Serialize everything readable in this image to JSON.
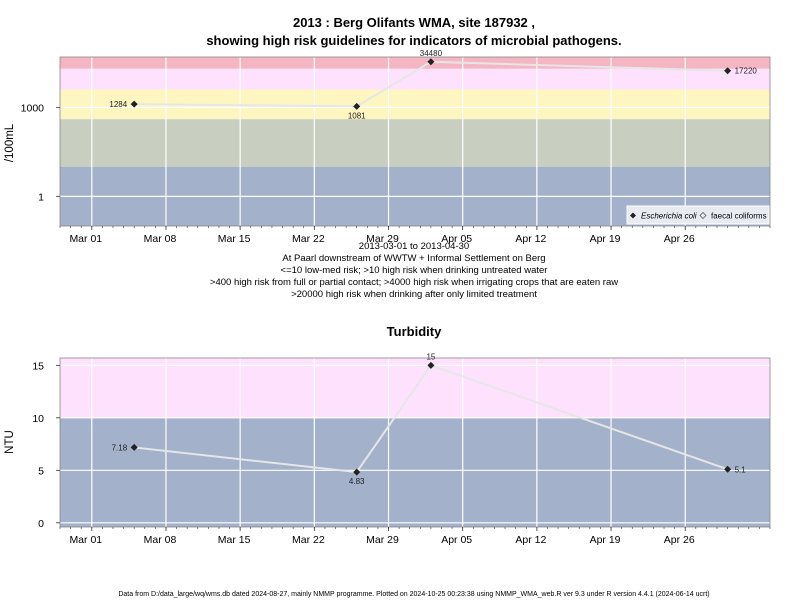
{
  "colors": {
    "band_red": "#f4b6c2",
    "band_pink": "#fde1fd",
    "band_yellow": "#fdf6c0",
    "band_green": "#c8cfc0",
    "band_blue": "#a3b1cb",
    "grid": "#ffffff",
    "line": "#e6e6e6",
    "marker": "#222222",
    "frame": "#888888"
  },
  "chart_data": [
    {
      "type": "line",
      "title_line1": "2013 : Berg Olifants WMA, site 187932 ,",
      "title_line2": "showing high risk guidelines for indicators of microbial pathogens.",
      "ylabel": "/100mL",
      "y_scale": "log10",
      "ylim": [
        0.1,
        50000
      ],
      "y_ticks": [
        {
          "value": 1,
          "label": "1"
        },
        {
          "value": 1000,
          "label": "1000"
        }
      ],
      "x_ticks": [
        "Mar 01",
        "Mar 08",
        "Mar 15",
        "Mar 22",
        "Mar 29",
        "Apr 05",
        "Apr 12",
        "Apr 19",
        "Apr 26"
      ],
      "x_tick_dates": [
        "2013-03-01",
        "2013-03-08",
        "2013-03-15",
        "2013-03-22",
        "2013-03-29",
        "2013-04-05",
        "2013-04-12",
        "2013-04-19",
        "2013-04-26"
      ],
      "xlim": [
        "2013-02-26",
        "2013-05-04"
      ],
      "bands": [
        {
          "from": 20000,
          "to": 50000,
          "color": "band_red"
        },
        {
          "from": 4000,
          "to": 20000,
          "color": "band_pink"
        },
        {
          "from": 400,
          "to": 4000,
          "color": "band_yellow"
        },
        {
          "from": 10,
          "to": 400,
          "color": "band_green"
        },
        {
          "from": 0.1,
          "to": 10,
          "color": "band_blue"
        }
      ],
      "series": [
        {
          "name": "Escherichia coli",
          "x": [
            "2013-03-05",
            "2013-03-26",
            "2013-04-02",
            "2013-04-30"
          ],
          "values": [
            1284,
            1081,
            34480,
            17220
          ],
          "labels": [
            "1284",
            "1081",
            "34480",
            "17220"
          ],
          "label_pos": [
            "left",
            "below",
            "above",
            "right"
          ]
        }
      ],
      "legend": {
        "position": "bottom-right",
        "entries": [
          "Escherichia coli",
          "faecal coliforms"
        ]
      },
      "subtitle_lines": [
        "2013-03-01 to 2013-04-30",
        "At Paarl downstream of WWTW + Informal Settlement on Berg",
        "<=10 low-med risk; >10 high risk when drinking untreated water",
        ">400 high risk from full or partial contact; >4000 high risk when irrigating crops that are eaten raw",
        ">20000 high risk when drinking after only limited treatment"
      ]
    },
    {
      "type": "line",
      "title": "Turbidity",
      "ylabel": "NTU",
      "ylim": [
        -0.4,
        15.7
      ],
      "y_ticks": [
        {
          "value": 0,
          "label": "0"
        },
        {
          "value": 5,
          "label": "5"
        },
        {
          "value": 10,
          "label": "10"
        },
        {
          "value": 15,
          "label": "15"
        }
      ],
      "x_ticks": [
        "Mar 01",
        "Mar 08",
        "Mar 15",
        "Mar 22",
        "Mar 29",
        "Apr 05",
        "Apr 12",
        "Apr 19",
        "Apr 26"
      ],
      "x_tick_dates": [
        "2013-03-01",
        "2013-03-08",
        "2013-03-15",
        "2013-03-22",
        "2013-03-29",
        "2013-04-05",
        "2013-04-12",
        "2013-04-19",
        "2013-04-26"
      ],
      "xlim": [
        "2013-02-26",
        "2013-05-04"
      ],
      "bands": [
        {
          "from": 10,
          "to": 15.7,
          "color": "band_pink"
        },
        {
          "from": -0.4,
          "to": 10,
          "color": "band_blue"
        }
      ],
      "series": [
        {
          "x": [
            "2013-03-05",
            "2013-03-26",
            "2013-04-02",
            "2013-04-30"
          ],
          "values": [
            7.18,
            4.83,
            15,
            5.1
          ],
          "labels": [
            "7.18",
            "4.83",
            "15",
            "5.1"
          ],
          "label_pos": [
            "left",
            "below",
            "above",
            "right"
          ]
        }
      ]
    }
  ],
  "footer": "Data from D:/data_large/wq/wms.db dated 2024-08-27, mainly NMMP programme. Plotted on 2024-10-25 00:23:38 using NMMP_WMA_web.R ver 9.3 under R version 4.4.1 (2024-06-14 ucrt)"
}
